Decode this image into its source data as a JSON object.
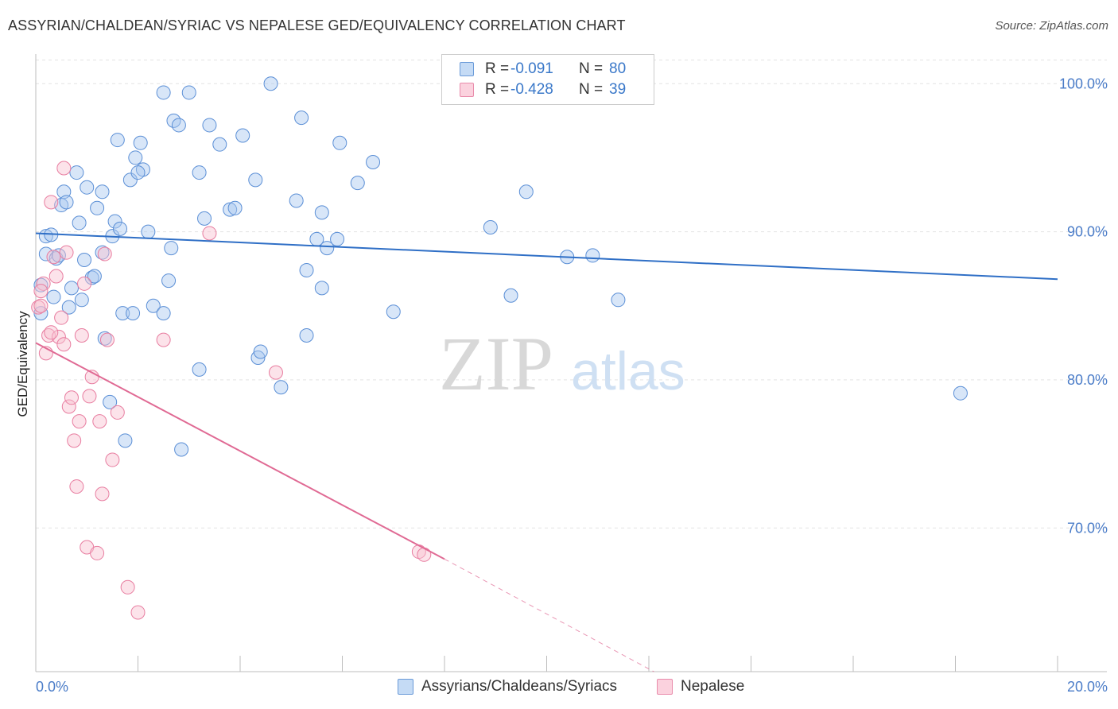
{
  "header": {
    "title": "ASSYRIAN/CHALDEAN/SYRIAC VS NEPALESE GED/EQUIVALENCY CORRELATION CHART",
    "source": "Source: ZipAtlas.com"
  },
  "watermark": {
    "zip": "ZIP",
    "atlas": "atlas"
  },
  "legend": {
    "rows": [
      {
        "r_label": "R =",
        "r_value": "-0.091",
        "n_label": "N =",
        "n_value": "80",
        "color": "#a8c8f0",
        "stroke": "#5b8fd6"
      },
      {
        "r_label": "R =",
        "r_value": "-0.428",
        "n_label": "N =",
        "n_value": "39",
        "color": "#f8c0d0",
        "stroke": "#e87da0"
      }
    ]
  },
  "bottom_legend": {
    "items": [
      {
        "label": "Assyrians/Chaldeans/Syriacs",
        "color": "#c5dbf5",
        "stroke": "#6a9ad8"
      },
      {
        "label": "Nepalese",
        "color": "#fbd2de",
        "stroke": "#e98bab"
      }
    ]
  },
  "chart_data": {
    "type": "scatter",
    "ylabel": "GED/Equivalency",
    "xlim": [
      0,
      20
    ],
    "ylim": [
      60.3,
      102
    ],
    "x_tick_labels": [
      {
        "value": 0,
        "label": "0.0%"
      },
      {
        "value": 20,
        "label": "20.0%"
      }
    ],
    "y_tick_labels": [
      {
        "value": 100,
        "label": "100.0%"
      },
      {
        "value": 90,
        "label": "90.0%"
      },
      {
        "value": 80,
        "label": "80.0%"
      },
      {
        "value": 70,
        "label": "70.0%"
      }
    ],
    "grid": true,
    "series": [
      {
        "name": "Assyrians/Chaldeans/Syriacs",
        "color": "#a8c8f0",
        "stroke": "#5b8fd6",
        "line_color": "#2f6fc6",
        "trend": {
          "x": [
            0,
            20
          ],
          "y": [
            89.9,
            86.8
          ]
        },
        "points": [
          [
            0.1,
            86.4
          ],
          [
            0.1,
            84.5
          ],
          [
            0.2,
            89.7
          ],
          [
            0.2,
            88.5
          ],
          [
            0.3,
            89.8
          ],
          [
            0.35,
            85.6
          ],
          [
            0.4,
            88.2
          ],
          [
            0.45,
            88.4
          ],
          [
            0.5,
            91.8
          ],
          [
            0.55,
            92.7
          ],
          [
            0.6,
            92.0
          ],
          [
            0.65,
            84.9
          ],
          [
            0.7,
            86.2
          ],
          [
            0.8,
            94.0
          ],
          [
            0.85,
            90.6
          ],
          [
            0.9,
            85.4
          ],
          [
            0.95,
            88.1
          ],
          [
            1.0,
            93.0
          ],
          [
            1.1,
            86.9
          ],
          [
            1.2,
            91.6
          ],
          [
            1.3,
            92.7
          ],
          [
            1.3,
            88.6
          ],
          [
            1.35,
            82.8
          ],
          [
            1.45,
            78.5
          ],
          [
            1.5,
            89.7
          ],
          [
            1.55,
            90.7
          ],
          [
            1.6,
            96.2
          ],
          [
            1.65,
            90.2
          ],
          [
            1.7,
            84.5
          ],
          [
            1.75,
            75.9
          ],
          [
            1.85,
            93.5
          ],
          [
            1.9,
            84.5
          ],
          [
            1.95,
            95.0
          ],
          [
            2.05,
            96.0
          ],
          [
            2.1,
            94.2
          ],
          [
            2.2,
            90.0
          ],
          [
            2.3,
            85.0
          ],
          [
            2.5,
            84.5
          ],
          [
            2.6,
            86.7
          ],
          [
            2.7,
            97.5
          ],
          [
            2.8,
            97.2
          ],
          [
            2.85,
            75.3
          ],
          [
            2.5,
            99.4
          ],
          [
            3.0,
            99.4
          ],
          [
            3.2,
            80.7
          ],
          [
            3.3,
            90.9
          ],
          [
            3.4,
            97.2
          ],
          [
            3.6,
            95.9
          ],
          [
            3.8,
            91.5
          ],
          [
            3.9,
            91.6
          ],
          [
            4.05,
            96.5
          ],
          [
            4.3,
            93.5
          ],
          [
            4.35,
            81.5
          ],
          [
            4.4,
            81.9
          ],
          [
            4.6,
            100.0
          ],
          [
            4.8,
            79.5
          ],
          [
            5.1,
            92.1
          ],
          [
            5.2,
            97.7
          ],
          [
            5.3,
            87.4
          ],
          [
            5.3,
            83.0
          ],
          [
            5.5,
            89.5
          ],
          [
            5.6,
            91.3
          ],
          [
            5.6,
            86.2
          ],
          [
            5.7,
            88.9
          ],
          [
            5.9,
            89.5
          ],
          [
            5.95,
            96.0
          ],
          [
            6.3,
            93.3
          ],
          [
            6.6,
            94.7
          ],
          [
            7.0,
            84.6
          ],
          [
            8.9,
            90.3
          ],
          [
            9.3,
            85.7
          ],
          [
            9.6,
            92.7
          ],
          [
            10.4,
            88.3
          ],
          [
            10.9,
            88.4
          ],
          [
            11.4,
            85.4
          ],
          [
            18.1,
            79.1
          ],
          [
            2.65,
            88.9
          ],
          [
            2.0,
            94.0
          ],
          [
            3.2,
            94.0
          ],
          [
            1.15,
            87.0
          ]
        ]
      },
      {
        "name": "Nepalese",
        "color": "#f8c0d0",
        "stroke": "#e87da0",
        "line_color": "#e06a94",
        "trend": {
          "x": [
            0,
            8
          ],
          "y": [
            82.5,
            67.9
          ]
        },
        "trend_dashed": {
          "x": [
            8,
            12.1
          ],
          "y": [
            67.9,
            60.3
          ]
        },
        "points": [
          [
            0.05,
            84.9
          ],
          [
            0.1,
            85.0
          ],
          [
            0.15,
            86.5
          ],
          [
            0.2,
            81.8
          ],
          [
            0.25,
            83.0
          ],
          [
            0.3,
            92.0
          ],
          [
            0.35,
            88.3
          ],
          [
            0.4,
            87.0
          ],
          [
            0.45,
            82.9
          ],
          [
            0.5,
            84.2
          ],
          [
            0.55,
            82.4
          ],
          [
            0.6,
            88.6
          ],
          [
            0.55,
            94.3
          ],
          [
            0.65,
            78.2
          ],
          [
            0.7,
            78.8
          ],
          [
            0.75,
            75.9
          ],
          [
            0.8,
            72.8
          ],
          [
            0.85,
            77.2
          ],
          [
            0.9,
            83.0
          ],
          [
            0.95,
            86.5
          ],
          [
            1.0,
            68.7
          ],
          [
            1.05,
            78.9
          ],
          [
            1.1,
            80.2
          ],
          [
            1.2,
            68.3
          ],
          [
            1.25,
            77.2
          ],
          [
            1.3,
            72.3
          ],
          [
            1.35,
            88.5
          ],
          [
            1.4,
            82.7
          ],
          [
            1.5,
            74.6
          ],
          [
            1.6,
            77.8
          ],
          [
            1.8,
            66.0
          ],
          [
            2.0,
            64.3
          ],
          [
            2.5,
            82.7
          ],
          [
            3.4,
            89.9
          ],
          [
            4.7,
            80.5
          ],
          [
            7.5,
            68.4
          ],
          [
            7.6,
            68.2
          ],
          [
            0.1,
            86.0
          ],
          [
            0.3,
            83.2
          ]
        ]
      }
    ]
  }
}
